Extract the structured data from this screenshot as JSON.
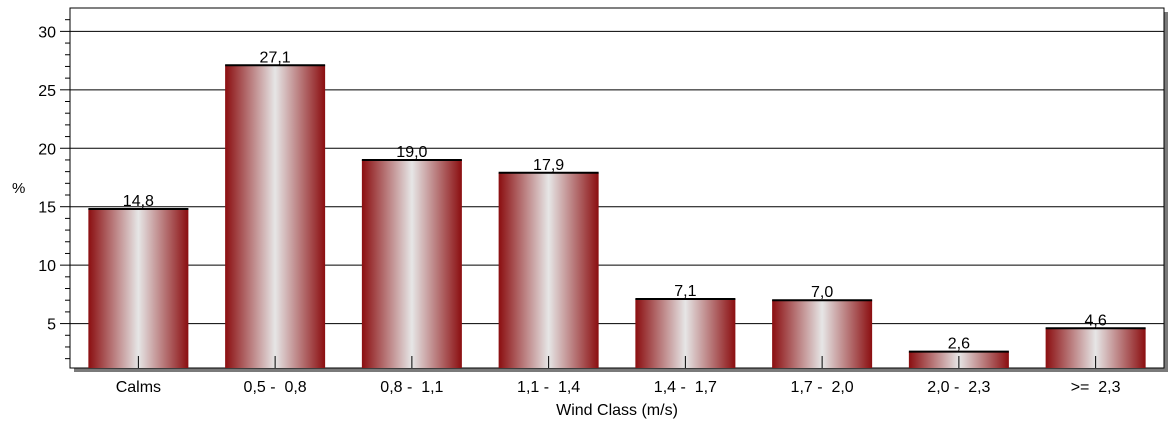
{
  "chart_data": {
    "type": "bar",
    "title": "",
    "xlabel": "Wind Class (m/s)",
    "ylabel": "%",
    "categories": [
      "Calms",
      "0,5 -  0,8",
      "0,8 -  1,1",
      "1,1 -  1,4",
      "1,4 -  1,7",
      "1,7 -  2,0",
      "2,0 -  2,3",
      ">=  2,3"
    ],
    "values": [
      14.8,
      27.1,
      19.0,
      17.9,
      7.1,
      7.0,
      2.6,
      4.6
    ],
    "value_labels": [
      "14,8",
      "27,1",
      "19,0",
      "17,9",
      "7,1",
      "7,0",
      "2,6",
      "4,6"
    ],
    "ylim": [
      1.2,
      32
    ],
    "yticks": [
      5,
      10,
      15,
      20,
      25,
      30
    ],
    "ytick_labels": [
      "5",
      "10",
      "15",
      "20",
      "25",
      "30"
    ],
    "grid": true,
    "legend": "none",
    "colors": {
      "bar_dark": "#8b0e10",
      "bar_light": "#e6e6e6",
      "grid": "#000000",
      "frame": "#000000",
      "shadow": "#7a7a7a"
    }
  }
}
